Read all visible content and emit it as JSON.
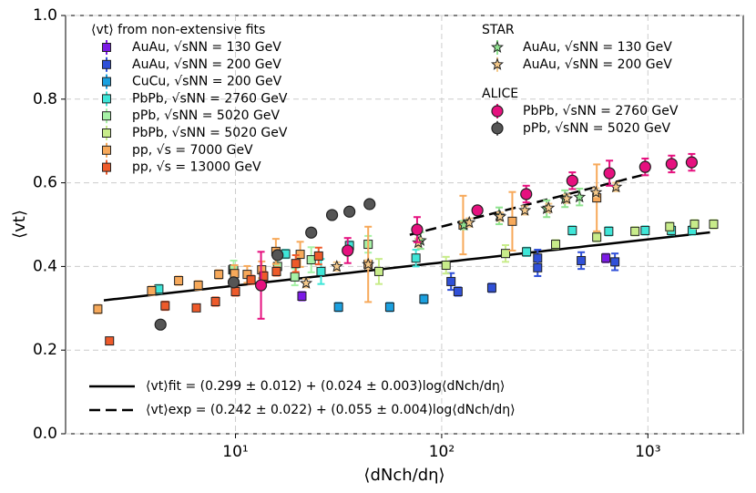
{
  "chart_data": {
    "type": "scatter",
    "x_label": "⟨dNch/dη⟩",
    "y_label": "⟨vt⟩",
    "log_x": true,
    "grid": true,
    "xlim": [
      1.5,
      2900
    ],
    "ylim": [
      0,
      1.0
    ],
    "xticks": [
      {
        "value": 10,
        "label": "10¹"
      },
      {
        "value": 100,
        "label": "10²"
      },
      {
        "value": 1000,
        "label": "10³"
      }
    ],
    "yticks": [
      {
        "value": 0,
        "label": "0.0"
      },
      {
        "value": 0.2,
        "label": "0.2"
      },
      {
        "value": 0.4,
        "label": "0.4"
      },
      {
        "value": 0.6,
        "label": "0.6"
      },
      {
        "value": 0.8,
        "label": "0.8"
      },
      {
        "value": 1.0,
        "label": "1.0"
      }
    ],
    "legend_groups": [
      "⟨vt⟩ from non-extensive fits",
      "STAR",
      "ALICE"
    ],
    "series": [
      {
        "name": "AuAu, √sNN = 130 GeV",
        "group": 0,
        "marker": "square",
        "color": "#7b19e6",
        "x": [
          21,
          625
        ],
        "values": [
          0.329,
          0.42
        ],
        "errors": [
          0.01,
          0.01
        ]
      },
      {
        "name": "AuAu, √sNN = 200 GeV",
        "group": 0,
        "marker": "square",
        "color": "#3050d8",
        "x": [
          111,
          120,
          175,
          292,
          292,
          475,
          692
        ],
        "values": [
          0.364,
          0.34,
          0.349,
          0.42,
          0.397,
          0.414,
          0.411
        ],
        "errors": [
          0.02,
          0.01,
          0.01,
          0.02,
          0.02,
          0.02,
          0.02
        ]
      },
      {
        "name": "CuCu, √sNN = 200 GeV",
        "group": 0,
        "marker": "square",
        "color": "#1aa0e0",
        "x": [
          31.6,
          56,
          82
        ],
        "values": [
          0.303,
          0.303,
          0.322
        ],
        "errors": [
          0.01,
          0.01,
          0.01
        ]
      },
      {
        "name": "PbPb, √sNN = 2760 GeV",
        "group": 0,
        "marker": "square",
        "color": "#3ee6d8",
        "x": [
          4.25,
          9.7,
          17.5,
          26,
          35.7,
          75,
          258,
          430,
          646,
          970,
          1300,
          1640
        ],
        "values": [
          0.346,
          0.392,
          0.43,
          0.388,
          0.45,
          0.42,
          0.435,
          0.486,
          0.484,
          0.486,
          0.486,
          0.486
        ],
        "errors": [
          0.01,
          0.01,
          0.01,
          0.03,
          0.01,
          0.02,
          0.01,
          0.01,
          0.01,
          0.01,
          0.01,
          0.01
        ]
      },
      {
        "name": "pPb, √sNN = 5020 GeV",
        "group": 0,
        "marker": "square",
        "color": "#a6f2a6",
        "x": [
          9.8,
          16,
          19.4,
          23.3,
          44
        ],
        "values": [
          0.394,
          0.4,
          0.375,
          0.416,
          0.453
        ],
        "errors": [
          0.02,
          0.02,
          0.02,
          0.03,
          0.02
        ]
      },
      {
        "name": "PbPb, √sNN = 5020 GeV",
        "group": 0,
        "marker": "square",
        "color": "#c8ec8a",
        "x": [
          49.6,
          105,
          204,
          357,
          565,
          866,
          1276,
          1683,
          2083
        ],
        "values": [
          0.388,
          0.403,
          0.431,
          0.453,
          0.47,
          0.484,
          0.495,
          0.501,
          0.501
        ],
        "errors": [
          0.03,
          0.02,
          0.02,
          0.01,
          0.01,
          0.01,
          0.01,
          0.01,
          0.01
        ]
      },
      {
        "name": "pp, √s = 7000 GeV",
        "group": 0,
        "marker": "square",
        "color": "#f7a95a",
        "x": [
          2.15,
          3.92,
          5.3,
          6.6,
          8.3,
          9.9,
          11.4,
          13.4,
          15.7,
          20.6,
          44,
          127,
          220,
          565
        ],
        "values": [
          0.298,
          0.342,
          0.366,
          0.355,
          0.381,
          0.383,
          0.381,
          0.392,
          0.436,
          0.429,
          0.405,
          0.499,
          0.508,
          0.564
        ],
        "errors": [
          0.01,
          0.01,
          0.01,
          0.01,
          0.01,
          0.02,
          0.02,
          0.02,
          0.03,
          0.03,
          0.09,
          0.07,
          0.07,
          0.08
        ]
      },
      {
        "name": "pp, √s = 13000 GeV",
        "group": 0,
        "marker": "square",
        "color": "#ee5a2a",
        "x": [
          2.45,
          4.56,
          6.46,
          8.0,
          10,
          11.9,
          13.7,
          15.8,
          19.6,
          25.3
        ],
        "values": [
          0.222,
          0.306,
          0.301,
          0.316,
          0.34,
          0.368,
          0.377,
          0.388,
          0.407,
          0.425
        ],
        "errors": [
          0.005,
          0.01,
          0.005,
          0.01,
          0.01,
          0.01,
          0.01,
          0.01,
          0.02,
          0.02
        ]
      },
      {
        "name": "AuAu, √sNN = 130 GeV",
        "group": 1,
        "marker": "star",
        "color": "#8fe38f",
        "x": [
          79,
          128,
          190,
          323,
          396,
          466
        ],
        "values": [
          0.462,
          0.499,
          0.521,
          0.538,
          0.562,
          0.566
        ],
        "errors": [
          0.02,
          0.01,
          0.02,
          0.02,
          0.02,
          0.02
        ]
      },
      {
        "name": "AuAu, √sNN = 200 GeV",
        "group": 1,
        "marker": "star",
        "color": "#f5c98a",
        "x": [
          22,
          31,
          44,
          77,
          136,
          192,
          253,
          330,
          404,
          560,
          700
        ],
        "values": [
          0.36,
          0.4,
          0.405,
          0.457,
          0.505,
          0.519,
          0.534,
          0.54,
          0.562,
          0.577,
          0.59
        ],
        "errors": [
          0.01,
          0.01,
          0.01,
          0.01,
          0.01,
          0.01,
          0.01,
          0.01,
          0.01,
          0.01,
          0.01
        ]
      },
      {
        "name": "PbPb, √sNN = 2760 GeV",
        "group": 2,
        "marker": "circle",
        "color": "#e6117f",
        "x": [
          13.3,
          35,
          76,
          149,
          257,
          430,
          651,
          970,
          1303,
          1631
        ],
        "values": [
          0.355,
          0.438,
          0.488,
          0.534,
          0.573,
          0.605,
          0.623,
          0.638,
          0.645,
          0.649
        ],
        "errors": [
          0.08,
          0.03,
          0.03,
          0.01,
          0.02,
          0.02,
          0.03,
          0.02,
          0.02,
          0.02
        ]
      },
      {
        "name": "pPb, √sNN = 5020 GeV",
        "group": 2,
        "marker": "circle",
        "color": "#555555",
        "x": [
          4.33,
          9.8,
          16,
          23.3,
          29.4,
          35.7,
          44.7
        ],
        "values": [
          0.261,
          0.362,
          0.427,
          0.481,
          0.523,
          0.531,
          0.549
        ],
        "errors": [
          0.005,
          0.005,
          0.005,
          0.005,
          0.005,
          0.005,
          0.005
        ]
      }
    ],
    "fits": [
      {
        "label": "⟨vt⟩fit = (0.299 ± 0.012) + (0.024 ± 0.003)log⟨dNch/dη⟩",
        "intercept": 0.299,
        "slope": 0.024,
        "xrange": [
          2.3,
          2000
        ],
        "style": "solid"
      },
      {
        "label": "⟨vt⟩exp = (0.242 ± 0.022) + (0.055 ± 0.004)log⟨dNch/dη⟩",
        "intercept": 0.242,
        "slope": 0.055,
        "xrange": [
          70,
          1000
        ],
        "style": "dashed"
      }
    ]
  }
}
